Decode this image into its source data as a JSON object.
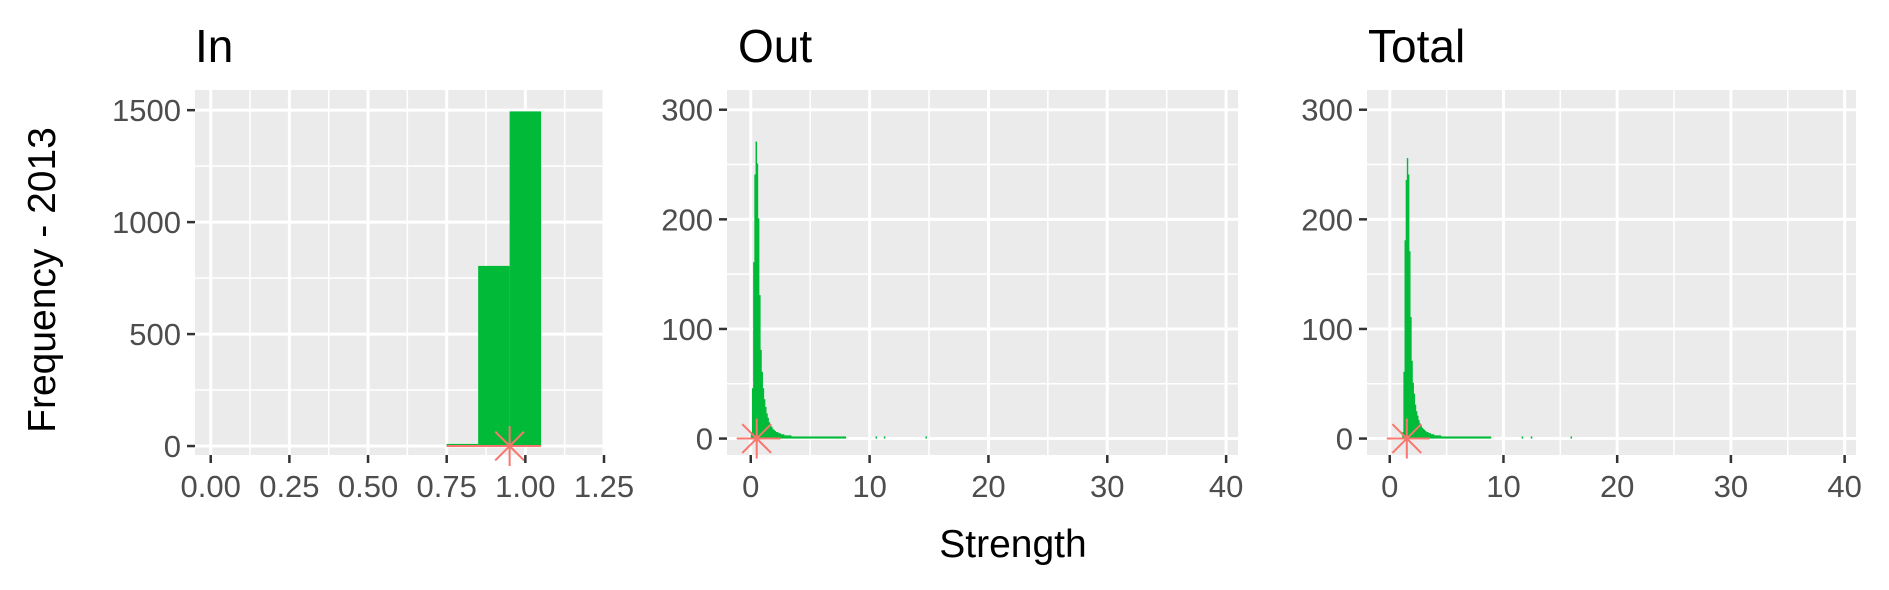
{
  "figure": {
    "ylabel": "Frequency - 2013",
    "xlabel": "Strength"
  },
  "colors": {
    "panel_background": "#ebebeb",
    "grid": "#ffffff",
    "bars": "#00ba38",
    "marker": "#f8766d",
    "tick_text": "#4d4d4d",
    "tick_mark": "#333333"
  },
  "chart_data": [
    {
      "type": "bar",
      "title": "In",
      "xlim": [
        -0.05,
        1.25
      ],
      "ylim": [
        -40,
        1590
      ],
      "xticks": [
        0,
        0.25,
        0.5,
        0.75,
        1.0,
        1.25
      ],
      "xtick_labels": [
        "0.00",
        "0.25",
        "0.50",
        "0.75",
        "1.00",
        "1.25"
      ],
      "yticks": [
        0,
        500,
        1000,
        1500
      ],
      "ytick_labels": [
        "0",
        "500",
        "1000",
        "1500"
      ],
      "bins": [
        {
          "x0": 0.75,
          "x1": 0.85,
          "count": 5
        },
        {
          "x0": 0.85,
          "x1": 0.95,
          "count": 800
        },
        {
          "x0": 0.95,
          "x1": 1.05,
          "count": 1490
        }
      ],
      "mean_marker": {
        "x": 0.95,
        "y": 0
      },
      "mean_line": [
        0.75,
        1.05
      ]
    },
    {
      "type": "bar",
      "title": "Out",
      "xlim": [
        -2,
        41
      ],
      "ylim": [
        -15,
        318
      ],
      "xticks": [
        0,
        10,
        20,
        30,
        40
      ],
      "xtick_labels": [
        "0",
        "10",
        "20",
        "30",
        "40"
      ],
      "yticks": [
        0,
        100,
        200,
        300
      ],
      "ytick_labels": [
        "0",
        "100",
        "200",
        "300"
      ],
      "hist": {
        "start": 0,
        "binwidth": 0.1,
        "counts": [
          5,
          45,
          160,
          240,
          270,
          250,
          200,
          130,
          80,
          60,
          45,
          35,
          28,
          22,
          18,
          14,
          12,
          10,
          8,
          7,
          6,
          5,
          5,
          4,
          4,
          3,
          3,
          3,
          2,
          2,
          2,
          2,
          2,
          2,
          1,
          1,
          1,
          1,
          1,
          1,
          1,
          1,
          1,
          1,
          1,
          1,
          1,
          1,
          1,
          1,
          1,
          1,
          1,
          1,
          1,
          1,
          1,
          1,
          1,
          1,
          1,
          1,
          1,
          1,
          1,
          1,
          1,
          1,
          1,
          1,
          1,
          1,
          1,
          1,
          1,
          1,
          1,
          1,
          1,
          1
        ],
        "sparse": [
          [
            10.5,
            1
          ],
          [
            11.2,
            1
          ],
          [
            14.7,
            1
          ]
        ]
      },
      "mean_marker": {
        "x": 0.5,
        "y": 0
      },
      "mean_line": [
        0,
        2.5
      ]
    },
    {
      "type": "bar",
      "title": "Total",
      "xlim": [
        -2,
        41
      ],
      "ylim": [
        -15,
        318
      ],
      "xticks": [
        0,
        10,
        20,
        30,
        40
      ],
      "xtick_labels": [
        "0",
        "10",
        "20",
        "30",
        "40"
      ],
      "yticks": [
        0,
        100,
        200,
        300
      ],
      "ytick_labels": [
        "0",
        "100",
        "200",
        "300"
      ],
      "hist": {
        "start": 1.1,
        "binwidth": 0.1,
        "counts": [
          5,
          60,
          180,
          235,
          255,
          240,
          170,
          110,
          70,
          50,
          40,
          30,
          24,
          20,
          16,
          13,
          11,
          9,
          8,
          7,
          6,
          5,
          5,
          4,
          4,
          3,
          3,
          3,
          2,
          2,
          2,
          2,
          2,
          2,
          1,
          1,
          1,
          1,
          1,
          1,
          1,
          1,
          1,
          1,
          1,
          1,
          1,
          1,
          1,
          1,
          1,
          1,
          1,
          1,
          1,
          1,
          1,
          1,
          1,
          1,
          1,
          1,
          1,
          1,
          1,
          1,
          1,
          1,
          1,
          1,
          1,
          1,
          1,
          1,
          1,
          1,
          1,
          1
        ],
        "sparse": [
          [
            11.6,
            1
          ],
          [
            12.4,
            1
          ],
          [
            15.9,
            1
          ]
        ]
      },
      "mean_marker": {
        "x": 1.5,
        "y": 0
      },
      "mean_line": [
        0,
        3.5
      ]
    }
  ]
}
